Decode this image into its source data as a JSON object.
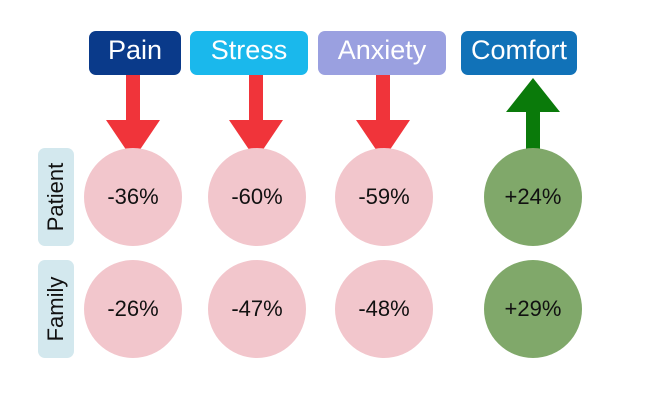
{
  "columns": [
    "Pain",
    "Stress",
    "Anxiety",
    "Comfort"
  ],
  "rows": [
    {
      "label": "Patient",
      "cells": [
        "-36%",
        "-60%",
        "-59%",
        "+24%"
      ]
    },
    {
      "label": "Family",
      "cells": [
        "-26%",
        "-47%",
        "-48%",
        "+29%"
      ]
    }
  ]
}
